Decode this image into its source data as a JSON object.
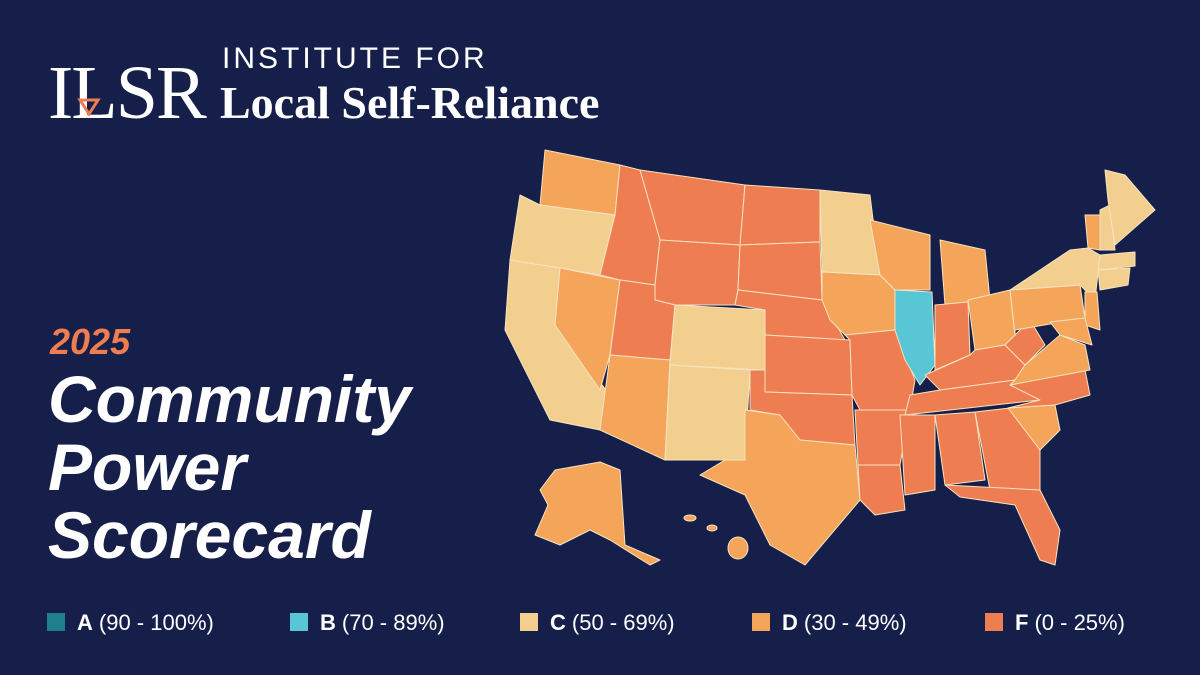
{
  "header": {
    "logo": "ILSR",
    "org_line1": "INSTITUTE FOR",
    "org_line2": "Local Self-Reliance"
  },
  "title": {
    "year": "2025",
    "lines": [
      "Community",
      "Power",
      "Scorecard"
    ]
  },
  "legend": [
    {
      "grade": "A",
      "range": "(90 - 100%)",
      "color": "#1f7f8a"
    },
    {
      "grade": "B",
      "range": "(70 - 89%)",
      "color": "#58c6d5"
    },
    {
      "grade": "C",
      "range": "(50 - 69%)",
      "color": "#f2cf8f"
    },
    {
      "grade": "D",
      "range": "(30 - 49%)",
      "color": "#f4a55a"
    },
    {
      "grade": "F",
      "range": "(0 - 25%)",
      "color": "#ef7d52"
    }
  ]
}
